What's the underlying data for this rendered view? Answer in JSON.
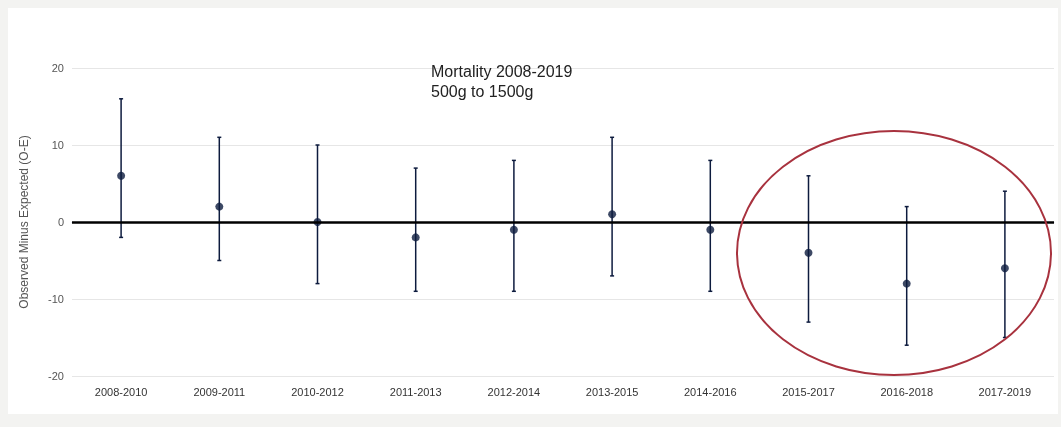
{
  "chart_data": {
    "type": "scatter",
    "title": "Mortality 2008-2019",
    "subtitle": "500g to 1500g",
    "ylabel": "Observed Minus Expected (O-E)",
    "categories": [
      "2008-2010",
      "2009-2011",
      "2010-2012",
      "2011-2013",
      "2012-2014",
      "2013-2015",
      "2014-2016",
      "2015-2017",
      "2016-2018",
      "2017-2019"
    ],
    "series": [
      {
        "color": "#0d1b3e",
        "values": [
          6,
          2,
          0,
          -2,
          -1,
          1,
          -1,
          -4,
          -8,
          -6
        ],
        "errors": [
          [
            -2,
            16
          ],
          [
            -5,
            11
          ],
          [
            -8,
            10
          ],
          [
            -9,
            7
          ],
          [
            -9,
            8
          ],
          [
            -7,
            11
          ],
          [
            -9,
            8
          ],
          [
            -13,
            6
          ],
          [
            -16,
            2
          ],
          [
            -15,
            4
          ]
        ]
      }
    ],
    "ylim": [
      -20,
      20
    ],
    "yticks": [
      -20,
      -10,
      0,
      10,
      20
    ],
    "grid": "y",
    "marker": "circle",
    "ref_lines": [
      {
        "axis": "y",
        "value": 0,
        "label": null,
        "color": "#000000",
        "line_style": "solid"
      }
    ]
  }
}
